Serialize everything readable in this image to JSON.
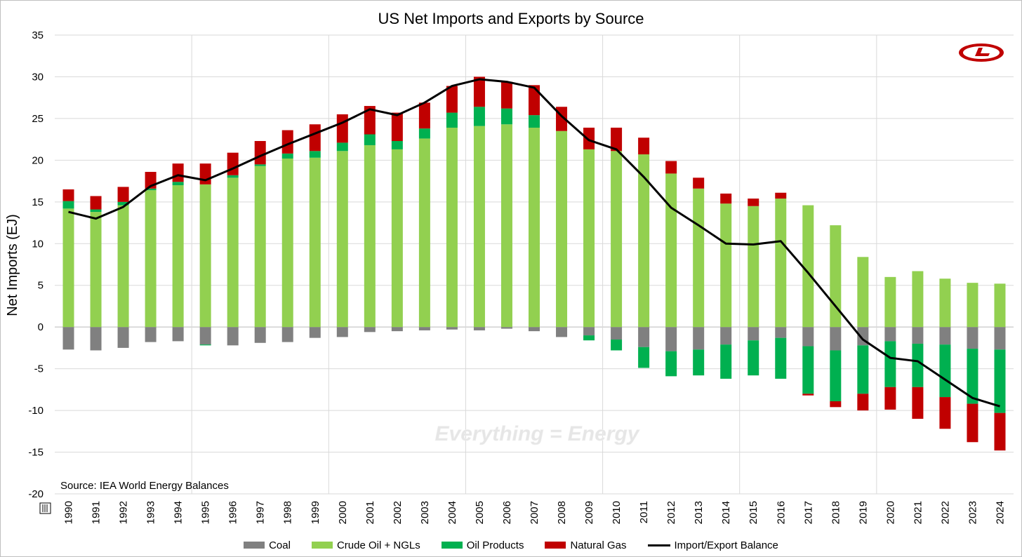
{
  "chart_data": {
    "type": "bar",
    "stacked": true,
    "title": "US Net Imports and Exports by Source",
    "ylabel": "Net Imports (EJ)",
    "xlabel": "",
    "ylim": [
      -20,
      35
    ],
    "yticks": [
      -20,
      -15,
      -10,
      -5,
      0,
      5,
      10,
      15,
      20,
      25,
      30,
      35
    ],
    "grid": true,
    "legend_position": "bottom",
    "source_note": "Source: IEA World Energy Balances",
    "watermark": "Everything = Energy",
    "categories": [
      "1990",
      "1991",
      "1992",
      "1993",
      "1994",
      "1995",
      "1996",
      "1997",
      "1998",
      "1999",
      "2000",
      "2001",
      "2002",
      "2003",
      "2004",
      "2005",
      "2006",
      "2007",
      "2008",
      "2009",
      "2010",
      "2011",
      "2012",
      "2013",
      "2014",
      "2015",
      "2016",
      "2017",
      "2018",
      "2019",
      "2020",
      "2021",
      "2022",
      "2023",
      "2024"
    ],
    "series": [
      {
        "name": "Coal",
        "color": "#808080",
        "values": [
          -2.7,
          -2.8,
          -2.5,
          -1.8,
          -1.7,
          -2.1,
          -2.2,
          -1.9,
          -1.8,
          -1.3,
          -1.2,
          -0.6,
          -0.5,
          -0.4,
          -0.3,
          -0.4,
          -0.2,
          -0.5,
          -1.2,
          -1.0,
          -1.5,
          -2.4,
          -2.9,
          -2.7,
          -2.1,
          -1.6,
          -1.3,
          -2.3,
          -2.8,
          -2.2,
          -1.7,
          -2.0,
          -2.1,
          -2.6,
          -2.7
        ]
      },
      {
        "name": "Crude Oil + NGLs",
        "color": "#92d050",
        "values": [
          14.2,
          13.8,
          14.6,
          16.4,
          17.0,
          17.1,
          17.9,
          19.3,
          20.2,
          20.3,
          21.1,
          21.8,
          21.3,
          22.6,
          23.9,
          24.1,
          24.3,
          23.9,
          23.5,
          21.3,
          21.1,
          20.7,
          18.4,
          16.6,
          14.8,
          14.5,
          15.4,
          14.6,
          12.2,
          8.4,
          6.0,
          6.7,
          5.8,
          5.3,
          5.2
        ]
      },
      {
        "name": "Oil Products",
        "color": "#00b050",
        "values": [
          0.9,
          0.3,
          0.4,
          0.2,
          0.4,
          -0.1,
          0.3,
          0.2,
          0.6,
          0.8,
          1.0,
          1.3,
          1.0,
          1.2,
          1.8,
          2.3,
          1.9,
          1.5,
          0.0,
          -0.6,
          -1.3,
          -2.5,
          -3.0,
          -3.1,
          -4.1,
          -4.2,
          -4.9,
          -5.7,
          -6.1,
          -5.8,
          -5.5,
          -5.2,
          -6.3,
          -6.6,
          -7.6
        ]
      },
      {
        "name": "Natural Gas",
        "color": "#c00000",
        "values": [
          1.4,
          1.6,
          1.8,
          2.0,
          2.2,
          2.5,
          2.7,
          2.8,
          2.8,
          3.2,
          3.4,
          3.4,
          3.4,
          3.1,
          3.2,
          3.6,
          3.2,
          3.6,
          2.9,
          2.6,
          2.8,
          2.0,
          1.5,
          1.3,
          1.2,
          0.9,
          0.7,
          -0.2,
          -0.7,
          -2.0,
          -2.7,
          -3.8,
          -3.8,
          -4.6,
          -4.5
        ]
      },
      {
        "name": "Import/Export Balance",
        "color": "#000000",
        "type": "line",
        "values": [
          13.8,
          13.0,
          14.4,
          16.9,
          18.2,
          17.6,
          19.0,
          20.5,
          21.9,
          23.2,
          24.5,
          26.1,
          25.4,
          26.9,
          28.9,
          29.7,
          29.4,
          28.7,
          25.3,
          22.4,
          21.3,
          18.0,
          14.3,
          12.2,
          10.0,
          9.9,
          10.3,
          6.5,
          2.5,
          -1.5,
          -3.7,
          -4.1,
          -6.3,
          -8.5,
          -9.5
        ]
      }
    ]
  }
}
